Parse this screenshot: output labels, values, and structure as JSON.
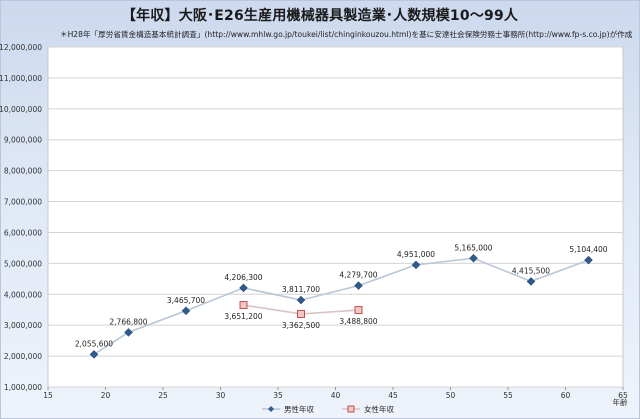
{
  "chart_data": {
    "type": "line",
    "title": "【年収】大阪･E26生産用機械器具製造業･人数規模10～99人",
    "subtitle": "＊H28年「厚労省賃金構造基本統計調査」(http://www.mhlw.go.jp/toukei/list/chinginkouzou.html)を基に安達社会保険労務士事務所(http://www.fp-s.co.jp)が作成",
    "xlabel": "年齢",
    "ylabel": "",
    "xlim": [
      15,
      65
    ],
    "ylim": [
      1000000,
      12000000
    ],
    "xticks": [
      15,
      20,
      25,
      30,
      35,
      40,
      45,
      50,
      55,
      60,
      65
    ],
    "xtick_labels": [
      "15",
      "20",
      "25",
      "30",
      "35",
      "40",
      "45",
      "50",
      "55",
      "60",
      "65"
    ],
    "yticks": [
      1000000,
      2000000,
      3000000,
      4000000,
      5000000,
      6000000,
      7000000,
      8000000,
      9000000,
      10000000,
      11000000,
      12000000
    ],
    "ytick_labels": [
      "1,000,000",
      "2,000,000",
      "3,000,000",
      "4,000,000",
      "5,000,000",
      "6,000,000",
      "7,000,000",
      "8,000,000",
      "9,000,000",
      "10,000,000",
      "11,000,000",
      "12,000,000"
    ],
    "grid": true,
    "legend": "bottom",
    "series": [
      {
        "name": "男性年収",
        "color": "#2e5b8c",
        "marker": "diamond",
        "x": [
          19,
          22,
          27,
          32,
          37,
          42,
          47,
          52,
          57,
          62
        ],
        "values": [
          2055600,
          2766800,
          3465700,
          4206300,
          3811700,
          4279700,
          4951000,
          5165000,
          4415500,
          5104400
        ],
        "labels": [
          "2,055,600",
          "2,766,800",
          "3,465,700",
          "4,206,300",
          "3,811,700",
          "4,279,700",
          "4,951,000",
          "5,165,000",
          "4,415,500",
          "5,104,400"
        ]
      },
      {
        "name": "女性年収",
        "color": "#c0504d",
        "marker": "square",
        "x": [
          32,
          37,
          42
        ],
        "values": [
          3651200,
          3362500,
          3488800
        ],
        "labels": [
          "3,651,200",
          "3,362,500",
          "3,488,800"
        ]
      }
    ]
  }
}
